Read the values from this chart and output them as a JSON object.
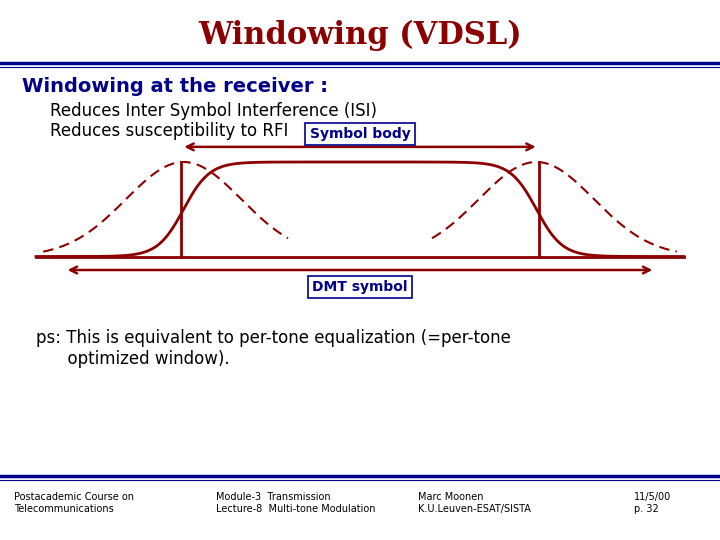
{
  "title": "Windowing (VDSL)",
  "title_color": "#8B0000",
  "title_fontsize": 22,
  "title_fontweight": "bold",
  "header_line_color": "#00008B",
  "bg_color": "#FFFFFF",
  "section_title": "Windowing at the receiver :",
  "section_title_color": "#00008B",
  "section_title_fontsize": 14,
  "section_title_fontweight": "bold",
  "bullet1": "Reduces Inter Symbol Interference (ISI)",
  "bullet2": "Reduces susceptibility to RFI",
  "bullet_color": "#000000",
  "bullet_fontsize": 12,
  "symbol_body_label": "Symbol body",
  "dmt_symbol_label": "DMT symbol",
  "label_color": "#00008B",
  "label_fontsize": 10,
  "curve_color": "#8B0000",
  "arrow_color": "#8B0000",
  "ps_text": "ps: This is equivalent to per-tone equalization (=per-tone\n      optimized window).",
  "ps_color": "#000000",
  "ps_fontsize": 12,
  "footer_line_color": "#00008B",
  "footer_items": [
    [
      "Postacademic Course on\nTelecommunications",
      0.02
    ],
    [
      "Module-3  Transmission\nLecture-8  Multi-tone Modulation",
      0.3
    ],
    [
      "Marc Moonen\nK.U.Leuven-ESAT/SISTA",
      0.58
    ],
    [
      "11/5/00\np. 32",
      0.88
    ]
  ],
  "footer_fontsize": 7,
  "footer_color": "#000000"
}
